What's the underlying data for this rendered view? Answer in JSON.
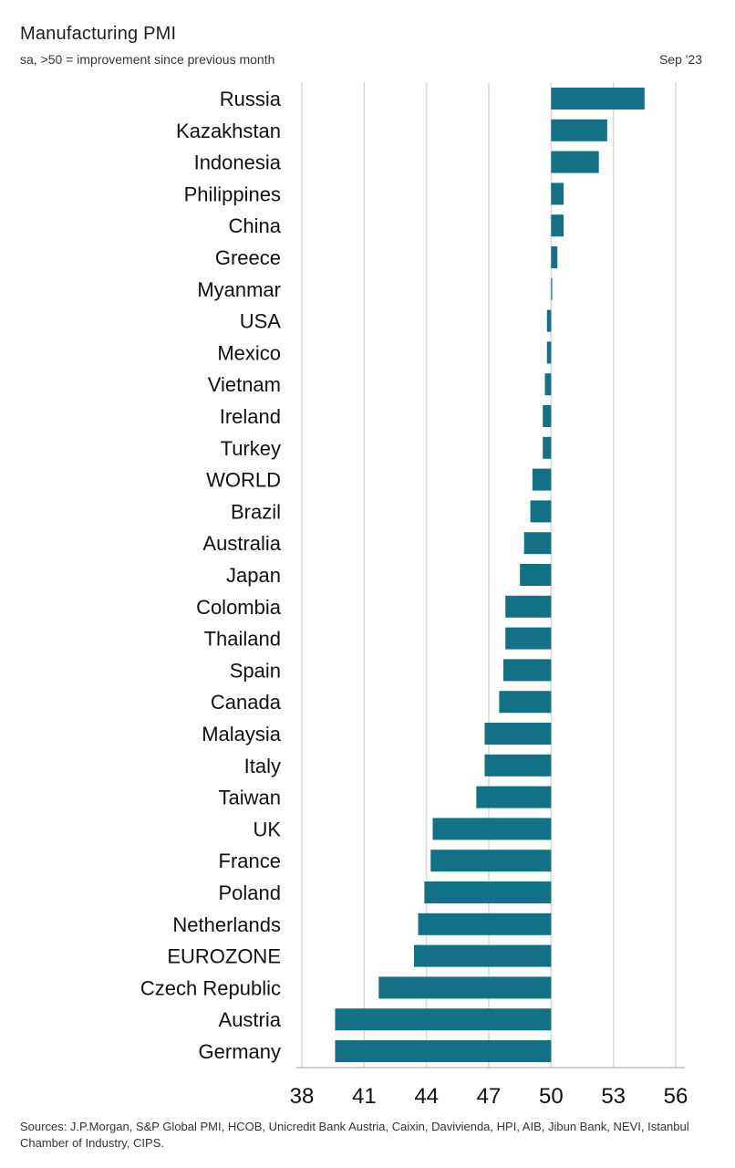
{
  "header": {
    "title": "Manufacturing PMI",
    "subtitle": "sa, >50 = improvement since previous month",
    "date": "Sep '23"
  },
  "footer": {
    "sources": "Sources: J.P.Morgan, S&P Global PMI, HCOB, Unicredit Bank Austria, Caixin, Davivienda, HPI, AIB, Jibun Bank, NEVI, Istanbul Chamber of Industry, CIPS."
  },
  "colors": {
    "bar": "#137186",
    "grid": "#d9d9d9",
    "axis": "#bdbdbd"
  },
  "chart_data": {
    "type": "bar",
    "orientation": "horizontal",
    "baseline": 50,
    "xlim": [
      38,
      56
    ],
    "xticks": [
      "38",
      "41",
      "44",
      "47",
      "50",
      "53",
      "56"
    ],
    "grid": true,
    "categories": [
      "Russia",
      "Kazakhstan",
      "Indonesia",
      "Philippines",
      "China",
      "Greece",
      "Myanmar",
      "USA",
      "Mexico",
      "Vietnam",
      "Ireland",
      "Turkey",
      "WORLD",
      "Brazil",
      "Australia",
      "Japan",
      "Colombia",
      "Thailand",
      "Spain",
      "Canada",
      "Malaysia",
      "Italy",
      "Taiwan",
      "UK",
      "France",
      "Poland",
      "Netherlands",
      "EUROZONE",
      "Czech Republic",
      "Austria",
      "Germany"
    ],
    "values": [
      54.5,
      52.7,
      52.3,
      50.6,
      50.6,
      50.3,
      50.0,
      49.8,
      49.8,
      49.7,
      49.6,
      49.6,
      49.1,
      49.0,
      48.7,
      48.5,
      47.8,
      47.8,
      47.7,
      47.5,
      46.8,
      46.8,
      46.4,
      44.3,
      44.2,
      43.9,
      43.6,
      43.4,
      41.7,
      39.6,
      39.6
    ]
  }
}
